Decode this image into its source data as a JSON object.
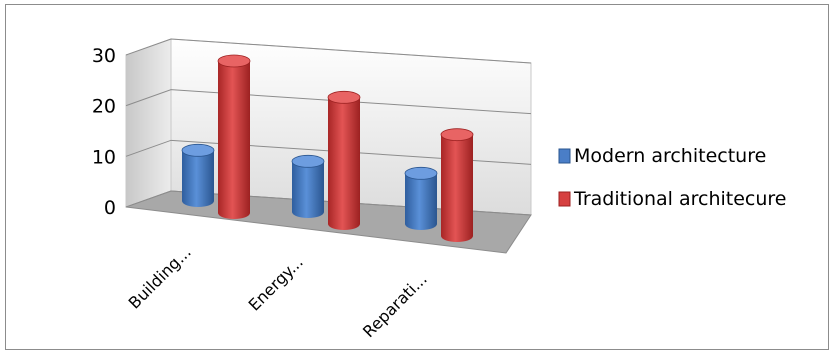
{
  "chart_data": {
    "type": "bar",
    "style": "3d-cylinder",
    "categories": [
      "Building...",
      "Energy...",
      "Reparati..."
    ],
    "series": [
      {
        "name": "Modern architecture",
        "values": [
          10,
          10,
          10
        ],
        "color": "#4a7ec7"
      },
      {
        "name": "Traditional architecure",
        "values": [
          30,
          25,
          20
        ],
        "color": "#d64040"
      }
    ],
    "yticks": [
      "0",
      "10",
      "20",
      "30"
    ],
    "ylim": [
      0,
      30
    ],
    "grid": true,
    "legend": "right"
  }
}
